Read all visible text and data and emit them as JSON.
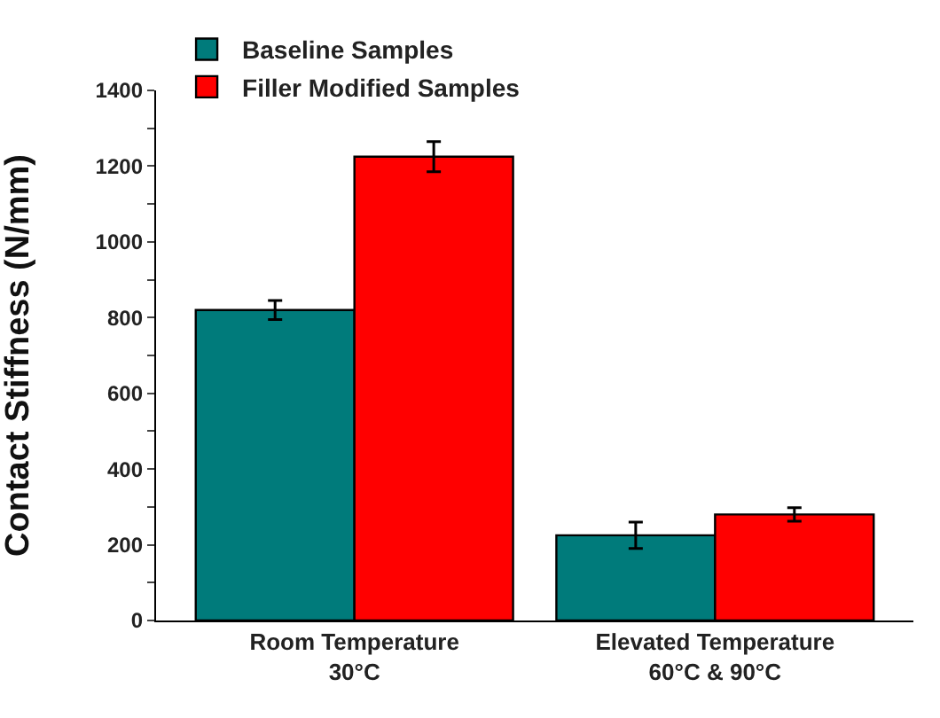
{
  "chart_data": {
    "type": "bar",
    "ylabel": "Contact Stiffness (N/mm)",
    "categories": [
      "Room Temperature\n30°C",
      "Elevated Temperature\n60°C & 90°C"
    ],
    "series": [
      {
        "name": "Baseline Samples",
        "color": "#007b7b",
        "values": [
          820,
          225
        ],
        "errors": [
          25,
          35
        ]
      },
      {
        "name": "Filler Modified Samples",
        "color": "#ff0000",
        "values": [
          1225,
          280
        ],
        "errors": [
          40,
          18
        ]
      }
    ],
    "ylim": [
      0,
      1400
    ],
    "yticks": [
      0,
      {
        "value": 100,
        "label": null
      },
      200,
      {
        "value": 300,
        "label": null
      },
      400,
      {
        "value": 500,
        "label": null
      },
      600,
      {
        "value": 700,
        "label": null
      },
      800,
      {
        "value": 900,
        "label": null
      },
      1000,
      {
        "value": 1100,
        "label": null
      },
      1200,
      {
        "value": 1300,
        "label": null
      },
      1400
    ],
    "grid": false,
    "legend": "top left"
  }
}
